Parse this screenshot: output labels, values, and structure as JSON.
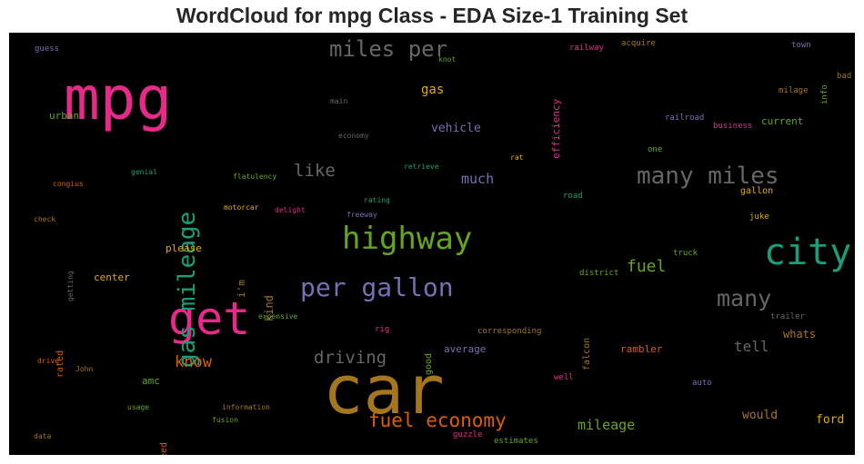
{
  "chart_data": {
    "type": "wordcloud",
    "title": "WordCloud for mpg Class - EDA Size-1 Training Set",
    "background": "#000000",
    "words": [
      {
        "text": "car",
        "color": "#a6761d"
      },
      {
        "text": "mpg",
        "color": "#e7298a"
      },
      {
        "text": "get",
        "color": "#e7298a"
      },
      {
        "text": "city",
        "color": "#1b9e77"
      },
      {
        "text": "highway",
        "color": "#66a61e"
      },
      {
        "text": "per gallon",
        "color": "#7570b3"
      },
      {
        "text": "gas mileage",
        "color": "#1b9e77"
      },
      {
        "text": "many miles",
        "color": "#666666"
      },
      {
        "text": "miles per",
        "color": "#666666"
      },
      {
        "text": "many",
        "color": "#666666"
      },
      {
        "text": "fuel economy",
        "color": "#d95f02"
      },
      {
        "text": "driving",
        "color": "#666666"
      },
      {
        "text": "like",
        "color": "#666666"
      },
      {
        "text": "fuel",
        "color": "#66a61e"
      },
      {
        "text": "know",
        "color": "#d95f02"
      },
      {
        "text": "tell",
        "color": "#666666"
      },
      {
        "text": "mileage",
        "color": "#66a61e"
      },
      {
        "text": "much",
        "color": "#7570b3"
      },
      {
        "text": "gas",
        "color": "#e6ab02"
      },
      {
        "text": "vehicle",
        "color": "#7570b3"
      },
      {
        "text": "would",
        "color": "#a6761d"
      },
      {
        "text": "ford",
        "color": "#e6ab02"
      },
      {
        "text": "whats",
        "color": "#a6761d"
      },
      {
        "text": "kind",
        "color": "#a6761d"
      },
      {
        "text": "efficiency",
        "color": "#e7298a"
      },
      {
        "text": "i'm",
        "color": "#a6761d"
      },
      {
        "text": "rambler",
        "color": "#d95f02"
      },
      {
        "text": "falcon",
        "color": "#a6761d"
      },
      {
        "text": "current",
        "color": "#66a61e"
      },
      {
        "text": "center",
        "color": "#e6ab02"
      },
      {
        "text": "please",
        "color": "#e6ab02"
      },
      {
        "text": "amc",
        "color": "#66a61e"
      },
      {
        "text": "average",
        "color": "#7570b3"
      },
      {
        "text": "urban",
        "color": "#66a61e"
      },
      {
        "text": "rated",
        "color": "#d95f02"
      },
      {
        "text": "good",
        "color": "#66a61e"
      },
      {
        "text": "need",
        "color": "#d95f02"
      },
      {
        "text": "gallon",
        "color": "#e6ab02"
      },
      {
        "text": "railroad",
        "color": "#7570b3"
      },
      {
        "text": "business",
        "color": "#e7298a"
      },
      {
        "text": "railway",
        "color": "#e7298a"
      },
      {
        "text": "acquire",
        "color": "#a6761d"
      },
      {
        "text": "town",
        "color": "#7570b3"
      },
      {
        "text": "info",
        "color": "#66a61e"
      },
      {
        "text": "bad",
        "color": "#a6761d"
      },
      {
        "text": "milage",
        "color": "#a6761d"
      },
      {
        "text": "one",
        "color": "#66a61e"
      },
      {
        "text": "road",
        "color": "#1b9e77"
      },
      {
        "text": "juke",
        "color": "#e6ab02"
      },
      {
        "text": "truck",
        "color": "#66a61e"
      },
      {
        "text": "district",
        "color": "#66a61e"
      },
      {
        "text": "trailer",
        "color": "#666666"
      },
      {
        "text": "corresponding",
        "color": "#a6761d"
      },
      {
        "text": "rig",
        "color": "#e7298a"
      },
      {
        "text": "well",
        "color": "#e7298a"
      },
      {
        "text": "auto",
        "color": "#7570b3"
      },
      {
        "text": "guzzle",
        "color": "#e7298a"
      },
      {
        "text": "estimates",
        "color": "#66a61e"
      },
      {
        "text": "guess",
        "color": "#7570b3"
      },
      {
        "text": "knot",
        "color": "#66a61e"
      },
      {
        "text": "main",
        "color": "#666666"
      },
      {
        "text": "economy",
        "color": "#666666"
      },
      {
        "text": "retrieve",
        "color": "#1b9e77"
      },
      {
        "text": "rat",
        "color": "#e6ab02"
      },
      {
        "text": "genial",
        "color": "#1b9e77"
      },
      {
        "text": "flatulency",
        "color": "#66a61e"
      },
      {
        "text": "congius",
        "color": "#d95f02"
      },
      {
        "text": "motorcar",
        "color": "#e6ab02"
      },
      {
        "text": "delight",
        "color": "#e7298a"
      },
      {
        "text": "rating",
        "color": "#1b9e77"
      },
      {
        "text": "freeway",
        "color": "#7570b3"
      },
      {
        "text": "check",
        "color": "#a6761d"
      },
      {
        "text": "getting",
        "color": "#666666"
      },
      {
        "text": "expensive",
        "color": "#66a61e"
      },
      {
        "text": "drive",
        "color": "#d95f02"
      },
      {
        "text": "John",
        "color": "#a6761d"
      },
      {
        "text": "usage",
        "color": "#66a61e"
      },
      {
        "text": "information",
        "color": "#a6761d"
      },
      {
        "text": "fusion",
        "color": "#66a61e"
      },
      {
        "text": "data",
        "color": "#a6761d"
      }
    ]
  }
}
